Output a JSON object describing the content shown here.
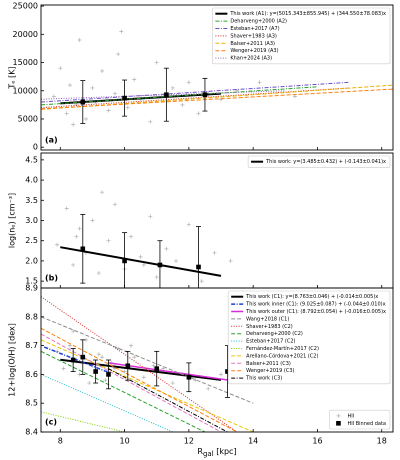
{
  "chart_data": [
    {
      "type": "scatter",
      "label": "(a)",
      "ylabel": "Tₑ [K]",
      "xlim": [
        7.4,
        18.35
      ],
      "xticks": [
        8,
        10,
        12,
        14,
        16,
        18
      ],
      "xticklabels": false,
      "ylim": [
        -500,
        25200
      ],
      "yticks": [
        0,
        5000,
        10000,
        15000,
        20000,
        25000
      ],
      "legend": "upper right",
      "series": [
        {
          "kind": "scatter",
          "color": "#b0b0b0",
          "x": [
            7.8,
            8.0,
            8.2,
            8.3,
            8.5,
            8.6,
            8.8,
            9.0,
            9.1,
            9.3,
            9.5,
            9.7,
            9.9,
            10.1,
            10.3,
            10.5,
            10.8,
            11.0,
            11.2,
            11.5,
            11.8,
            12.0,
            12.3,
            12.6,
            13.0,
            13.5,
            14.2,
            15.3,
            8.4,
            9.8
          ],
          "values": [
            9000,
            14000,
            6000,
            11000,
            7500,
            19000,
            5000,
            10500,
            8000,
            13500,
            6500,
            9500,
            20500,
            7000,
            12000,
            8500,
            4500,
            15000,
            9000,
            10500,
            7500,
            11500,
            6000,
            9500,
            8500,
            10000,
            11500,
            9000,
            4000,
            16500
          ]
        },
        {
          "name": "This work (A1): y=(5015.343±855.945) + (344.550±78.083)x",
          "kind": "line",
          "style": "solid",
          "color": "#000000",
          "width": 2,
          "x": [
            8,
            13
          ],
          "values": [
            7771,
            9494
          ]
        },
        {
          "name": "Deharveng+2000 (A2)",
          "kind": "line",
          "style": "dashdot",
          "color": "#2ca02c",
          "x": [
            7.4,
            16
          ],
          "values": [
            7500,
            10700
          ]
        },
        {
          "name": "Esteban+2017 (A7)",
          "kind": "line",
          "style": "dashdot",
          "color": "#6a4fc7",
          "x": [
            7.4,
            17
          ],
          "values": [
            8000,
            11500
          ]
        },
        {
          "name": "Shaver+1983 (A3)",
          "kind": "line",
          "style": "dotted",
          "color": "#d62728",
          "x": [
            7.4,
            17
          ],
          "values": [
            7000,
            10500
          ]
        },
        {
          "name": "Balser+2011 (A3)",
          "kind": "line",
          "style": "dashed",
          "color": "#e8b400",
          "x": [
            7.4,
            18.35
          ],
          "values": [
            6700,
            11000
          ]
        },
        {
          "name": "Wenger+2019 (A3)",
          "kind": "line",
          "style": "dashed",
          "color": "#ff7f0e",
          "x": [
            7.4,
            18.35
          ],
          "values": [
            6800,
            10300
          ]
        },
        {
          "name": "Khan+2024 (A3)",
          "kind": "line",
          "style": "dotted",
          "color": "#9467bd",
          "x": [
            7.4,
            15
          ],
          "values": [
            8500,
            10000
          ]
        },
        {
          "kind": "errorbar",
          "color": "#000000",
          "x": [
            8.7,
            10.0,
            11.3,
            12.5
          ],
          "values": [
            8000,
            8700,
            9300,
            9300
          ],
          "errors": [
            3800,
            3200,
            4700,
            2900
          ]
        }
      ]
    },
    {
      "type": "scatter",
      "label": "(b)",
      "ylabel": "log(nₑ) [cm⁻³]",
      "xlim": [
        7.4,
        18.35
      ],
      "xticks": [
        8,
        10,
        12,
        14,
        16,
        18
      ],
      "xticklabels": false,
      "ylim": [
        1.33,
        4.67
      ],
      "yticks": [
        1.5,
        {
          "value": 2,
          "label": "2.0"
        },
        2.5,
        {
          "value": 3,
          "label": "3.0"
        },
        3.5,
        {
          "value": 4,
          "label": "4.0"
        },
        4.5
      ],
      "legend": "upper right",
      "series": [
        {
          "kind": "scatter",
          "color": "#b0b0b0",
          "x": [
            7.9,
            8.2,
            8.4,
            8.6,
            8.8,
            9.0,
            9.2,
            9.5,
            9.7,
            10.0,
            10.2,
            10.5,
            10.8,
            11.0,
            11.3,
            11.6,
            12.0,
            12.4,
            12.8,
            13.3,
            8.5,
            9.3,
            10.6
          ],
          "values": [
            2.4,
            3.3,
            1.9,
            2.8,
            2.2,
            3.0,
            1.7,
            2.5,
            3.4,
            1.8,
            2.6,
            2.1,
            3.1,
            1.6,
            2.3,
            2.0,
            2.9,
            1.5,
            2.2,
            2.0,
            2.6,
            3.7,
            1.9
          ]
        },
        {
          "name": "This work: y=(3.485±0.432) + (-0.143±0.041)x",
          "kind": "line",
          "style": "solid",
          "color": "#000000",
          "width": 2,
          "x": [
            8,
            13
          ],
          "values": [
            2.34,
            1.63
          ]
        },
        {
          "kind": "errorbar",
          "color": "#000000",
          "x": [
            8.7,
            10.0,
            11.1,
            12.3
          ],
          "values": [
            2.3,
            2.0,
            1.9,
            1.85
          ],
          "errors": [
            0.85,
            0.7,
            0.6,
            1.0
          ]
        }
      ]
    },
    {
      "type": "scatter",
      "label": "(c)",
      "ylabel": "12+log(O/H) [dex]",
      "xlabel": [
        "R",
        "gal",
        " [kpc]"
      ],
      "xlim": [
        7.4,
        18.35
      ],
      "xticks": [
        8,
        10,
        12,
        14,
        16,
        18
      ],
      "xticklabels": true,
      "ylim": [
        8.4,
        8.9
      ],
      "yticks": [
        8.4,
        8.5,
        8.6,
        8.7,
        8.8,
        8.9
      ],
      "legend": "upper right",
      "series": [
        {
          "name": "HII",
          "legend_loc": "lower right",
          "kind": "scatter",
          "color": "#b0b0b0",
          "x": [
            7.9,
            8.1,
            8.3,
            8.5,
            8.6,
            8.8,
            9.0,
            9.2,
            9.4,
            9.6,
            9.8,
            10.0,
            10.3,
            10.6,
            10.9,
            11.2,
            11.5,
            11.8,
            12.2,
            12.6,
            13.0,
            8.4,
            8.9,
            9.3,
            9.7,
            10.2
          ],
          "values": [
            8.68,
            8.62,
            8.7,
            8.65,
            8.6,
            8.72,
            8.63,
            8.67,
            8.58,
            8.64,
            8.69,
            8.61,
            8.66,
            8.59,
            8.63,
            8.62,
            8.57,
            8.6,
            8.58,
            8.55,
            8.6,
            8.75,
            8.57,
            8.66,
            8.62,
            8.7
          ]
        },
        {
          "name": "This work (C1): y=(8.763±0.046) + (-0.014±0.005)x",
          "kind": "line",
          "style": "solid",
          "color": "#000000",
          "width": 2,
          "x": [
            8,
            13
          ],
          "values": [
            8.651,
            8.581
          ]
        },
        {
          "name": "This work inner (C1): (9.025±0.087) + (-0.044±0.010)x",
          "kind": "line",
          "style": "dashdot",
          "color": "#1f3fd6",
          "width": 1.5,
          "x": [
            7.5,
            9.5
          ],
          "values": [
            8.695,
            8.607
          ]
        },
        {
          "name": "This work outer (C1): (8.792±0.054) + (-0.016±0.005)x",
          "kind": "line",
          "style": "solid",
          "color": "#d62bd6",
          "width": 1.5,
          "x": [
            9.5,
            13.5
          ],
          "values": [
            8.64,
            8.576
          ]
        },
        {
          "name": "Wang+2018 (C1)",
          "kind": "line",
          "style": "dashed",
          "color": "#8c8c8c",
          "x": [
            7.4,
            14
          ],
          "values": [
            8.8,
            8.5
          ]
        },
        {
          "name": "Shaver+1983 (C2)",
          "kind": "line",
          "style": "dotted",
          "color": "#d62728",
          "x": [
            7.4,
            13.5
          ],
          "values": [
            8.87,
            8.4
          ]
        },
        {
          "name": "Deharveng+2000 (C2)",
          "kind": "line",
          "style": "dashed",
          "color": "#2ca02c",
          "x": [
            7.4,
            12.5
          ],
          "values": [
            8.68,
            8.4
          ]
        },
        {
          "name": "Esteban+2017 (C2)",
          "kind": "line",
          "style": "dotted",
          "color": "#17becf",
          "x": [
            7.4,
            11.5
          ],
          "values": [
            8.6,
            8.4
          ]
        },
        {
          "name": "Fernández-Martín+2017 (C2)",
          "kind": "line",
          "style": "dotted",
          "color": "#7fd000",
          "x": [
            7.4,
            10
          ],
          "values": [
            8.47,
            8.4
          ]
        },
        {
          "name": "Arellano-Córdova+2021 (C2)",
          "kind": "line",
          "style": "dashed",
          "color": "#e8c800",
          "x": [
            7.4,
            14
          ],
          "values": [
            8.72,
            8.4
          ]
        },
        {
          "name": "Balser+2011 (C3)",
          "kind": "line",
          "style": "dashed",
          "color": "#e377c2",
          "x": [
            7.4,
            13
          ],
          "values": [
            8.74,
            8.4
          ]
        },
        {
          "name": "Wenger+2019 (C3)",
          "kind": "line",
          "style": "dashed",
          "color": "#ff7f0e",
          "x": [
            7.4,
            13.5
          ],
          "values": [
            8.76,
            8.4
          ]
        },
        {
          "name": "This work (C3)",
          "kind": "line",
          "style": "dashdot",
          "color": "#000000",
          "x": [
            9.5,
            13.2
          ],
          "values": [
            8.62,
            8.4
          ]
        },
        {
          "name": "HII Binned data",
          "legend_loc": "lower right",
          "kind": "errorbar",
          "color": "#000000",
          "x": [
            8.4,
            8.7,
            9.1,
            9.5,
            10.1,
            11.0,
            12.0,
            13.2
          ],
          "values": [
            8.65,
            8.66,
            8.61,
            8.6,
            8.63,
            8.62,
            8.59,
            8.61
          ],
          "errors": [
            0.04,
            0.06,
            0.04,
            0.05,
            0.05,
            0.06,
            0.05,
            0.09
          ]
        }
      ]
    }
  ]
}
